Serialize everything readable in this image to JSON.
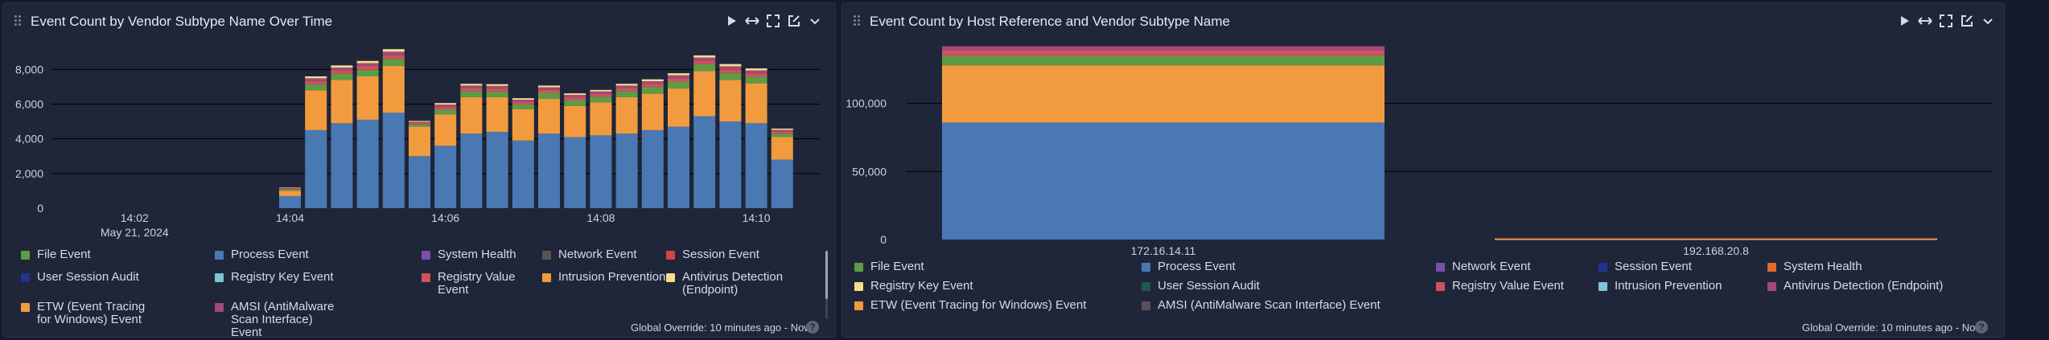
{
  "left_panel": {
    "title": "Event Count by Vendor Subtype Name Over Time",
    "icons": [
      "play-icon",
      "expand-horizontal-icon",
      "fullscreen-icon",
      "edit-icon",
      "chevron-down-icon"
    ],
    "footer": "Global Override: 10 minutes ago - Now",
    "help": "?",
    "legend": [
      {
        "label": "File Event",
        "color": "#5d9b45"
      },
      {
        "label": "Process Event",
        "color": "#4a78b3"
      },
      {
        "label": "System Health",
        "color": "#7b4fa8"
      },
      {
        "label": "Network Event",
        "color": "#5b5257"
      },
      {
        "label": "Session Event",
        "color": "#d0454a"
      },
      {
        "label": "User Session Audit",
        "color": "#22338f"
      },
      {
        "label": "Registry Key Event",
        "color": "#7ec4d4"
      },
      {
        "label": "Registry Value Event",
        "color": "#d0525a"
      },
      {
        "label": "Intrusion Prevention",
        "color": "#f29b3e"
      },
      {
        "label": "Antivirus Detection (Endpoint)",
        "color": "#f5dc8e"
      },
      {
        "label": "ETW (Event Tracing for Windows) Event",
        "color": "#f29b3e"
      },
      {
        "label": "AMSI (AntiMalware Scan Interface) Event",
        "color": "#a24a7a"
      }
    ]
  },
  "right_panel": {
    "title": "Event Count by Host Reference and Vendor Subtype Name",
    "icons": [
      "play-icon",
      "expand-horizontal-icon",
      "fullscreen-icon",
      "edit-icon",
      "chevron-down-icon"
    ],
    "footer": "Global Override: 10 minutes ago - Now",
    "help": "?",
    "legend": [
      {
        "label": "File Event",
        "color": "#5d9b45"
      },
      {
        "label": "Process Event",
        "color": "#4a78b3"
      },
      {
        "label": "Network Event",
        "color": "#7b4fa8"
      },
      {
        "label": "Session Event",
        "color": "#22338f"
      },
      {
        "label": "System Health",
        "color": "#e06a2a"
      },
      {
        "label": "Registry Key Event",
        "color": "#f5dc8e"
      },
      {
        "label": "User Session Audit",
        "color": "#24574f"
      },
      {
        "label": "Registry Value Event",
        "color": "#d0525a"
      },
      {
        "label": "Intrusion Prevention",
        "color": "#7ec4d4"
      },
      {
        "label": "Antivirus Detection (Endpoint)",
        "color": "#a24a7a"
      },
      {
        "label": "ETW (Event Tracing for Windows) Event",
        "color": "#f29b3e"
      },
      {
        "label": "AMSI (AntiMalware Scan Interface) Event",
        "color": "#5b5257"
      }
    ]
  },
  "chart_data": [
    {
      "type": "bar",
      "stacked": true,
      "title": "Event Count by Vendor Subtype Name Over Time",
      "ylim": [
        0,
        9500
      ],
      "y_ticks": [
        "0",
        "2,000",
        "4,000",
        "6,000",
        "8,000"
      ],
      "y_tick_values": [
        0,
        2000,
        4000,
        6000,
        8000
      ],
      "x_tick_labels": [
        "14:02",
        "14:04",
        "14:06",
        "14:08",
        "14:10"
      ],
      "x_tick_sublabel": "May 21, 2024",
      "x_tick_indices": [
        -6,
        0,
        6,
        12,
        18
      ],
      "grid": true,
      "categories": [
        "14:04:00",
        "14:04:20",
        "14:04:40",
        "14:05:00",
        "14:05:20",
        "14:05:40",
        "14:06:00",
        "14:06:20",
        "14:06:40",
        "14:07:00",
        "14:07:20",
        "14:07:40",
        "14:08:00",
        "14:08:20",
        "14:08:40",
        "14:09:00",
        "14:09:20",
        "14:09:40",
        "14:10:00",
        "14:10:20",
        "14:10:40"
      ],
      "series": [
        {
          "name": "Process Event",
          "color": "#4a78b3",
          "values": [
            700,
            4500,
            4900,
            5100,
            5500,
            3000,
            3600,
            4300,
            4400,
            3900,
            4300,
            4100,
            4200,
            4300,
            4500,
            4700,
            5300,
            5000,
            4900,
            2800,
            0
          ]
        },
        {
          "name": "ETW (Event Tracing for Windows) Event",
          "color": "#f29b3e",
          "values": [
            300,
            2300,
            2500,
            2500,
            2700,
            1700,
            1800,
            2100,
            2000,
            1800,
            2000,
            1800,
            1900,
            2100,
            2100,
            2200,
            2600,
            2400,
            2300,
            1300,
            0
          ]
        },
        {
          "name": "File Event",
          "color": "#5d9b45",
          "values": [
            80,
            350,
            350,
            380,
            400,
            130,
            280,
            350,
            330,
            280,
            350,
            330,
            330,
            350,
            380,
            400,
            400,
            400,
            380,
            200,
            0
          ]
        },
        {
          "name": "Registry Value Event",
          "color": "#d0525a",
          "values": [
            60,
            180,
            190,
            200,
            220,
            80,
            150,
            170,
            170,
            140,
            170,
            160,
            160,
            170,
            180,
            190,
            200,
            200,
            190,
            120,
            0
          ]
        },
        {
          "name": "AMSI (AntiMalware Scan Interface) Event",
          "color": "#a24a7a",
          "values": [
            40,
            160,
            170,
            180,
            200,
            70,
            140,
            150,
            150,
            130,
            150,
            140,
            140,
            150,
            160,
            170,
            180,
            180,
            170,
            100,
            0
          ]
        },
        {
          "name": "Antivirus Detection (Endpoint)",
          "color": "#f5dc8e",
          "values": [
            20,
            110,
            120,
            130,
            150,
            50,
            90,
            100,
            100,
            90,
            100,
            90,
            90,
            100,
            110,
            120,
            130,
            130,
            120,
            70,
            0
          ]
        }
      ]
    },
    {
      "type": "bar",
      "stacked": true,
      "title": "Event Count by Host Reference and Vendor Subtype Name",
      "ylim": [
        0,
        150000
      ],
      "y_ticks": [
        "0",
        "50,000",
        "100,000"
      ],
      "y_tick_values": [
        0,
        50000,
        100000
      ],
      "grid": true,
      "categories": [
        "172.16.14.11",
        "192.168.20.8"
      ],
      "series": [
        {
          "name": "Process Event",
          "color": "#4a78b3",
          "values": [
            86000,
            0
          ]
        },
        {
          "name": "ETW (Event Tracing for Windows) Event",
          "color": "#f29b3e",
          "values": [
            42000,
            800
          ]
        },
        {
          "name": "File Event",
          "color": "#5d9b45",
          "values": [
            7000,
            0
          ]
        },
        {
          "name": "Registry Value Event",
          "color": "#d0525a",
          "values": [
            4000,
            0
          ]
        },
        {
          "name": "Antivirus Detection (Endpoint)",
          "color": "#a24a7a",
          "values": [
            3000,
            0
          ]
        }
      ]
    }
  ]
}
